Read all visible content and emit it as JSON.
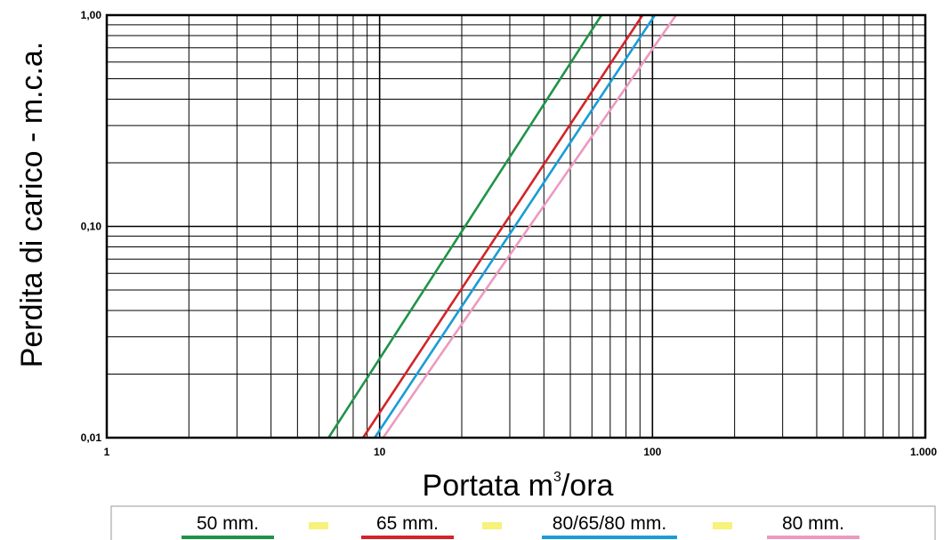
{
  "chart_data": {
    "type": "line",
    "xlabel_main": "Portata m",
    "xlabel_sup": "3",
    "xlabel_tail": "/ora",
    "ylabel": "Perdita di carico - m.c.a.",
    "x_scale": "log",
    "y_scale": "log",
    "xlim": [
      1,
      1000
    ],
    "ylim": [
      0.01,
      1
    ],
    "x_ticks": [
      {
        "value": 1,
        "label": "1"
      },
      {
        "value": 10,
        "label": "10"
      },
      {
        "value": 100,
        "label": "100"
      },
      {
        "value": 1000,
        "label": "1.000"
      }
    ],
    "y_ticks": [
      {
        "value": 0.01,
        "label": "0,01"
      },
      {
        "value": 0.1,
        "label": "0,10"
      },
      {
        "value": 1,
        "label": "1,00"
      }
    ],
    "grid": true,
    "legend_position": "bottom",
    "legend_separator_color": "#f7f27a",
    "series": [
      {
        "name": "50 mm.",
        "color": "#1f9448",
        "x": [
          6.5,
          65
        ],
        "y": [
          0.01,
          1
        ]
      },
      {
        "name": "65 mm.",
        "color": "#d2242a",
        "x": [
          8.7,
          92
        ],
        "y": [
          0.01,
          1
        ]
      },
      {
        "name": "80/65/80 mm.",
        "color": "#1a9cd8",
        "x": [
          9.6,
          102
        ],
        "y": [
          0.01,
          1
        ]
      },
      {
        "name": "80 mm.",
        "color": "#eb9ac0",
        "x": [
          10.3,
          122
        ],
        "y": [
          0.01,
          1
        ]
      }
    ]
  }
}
